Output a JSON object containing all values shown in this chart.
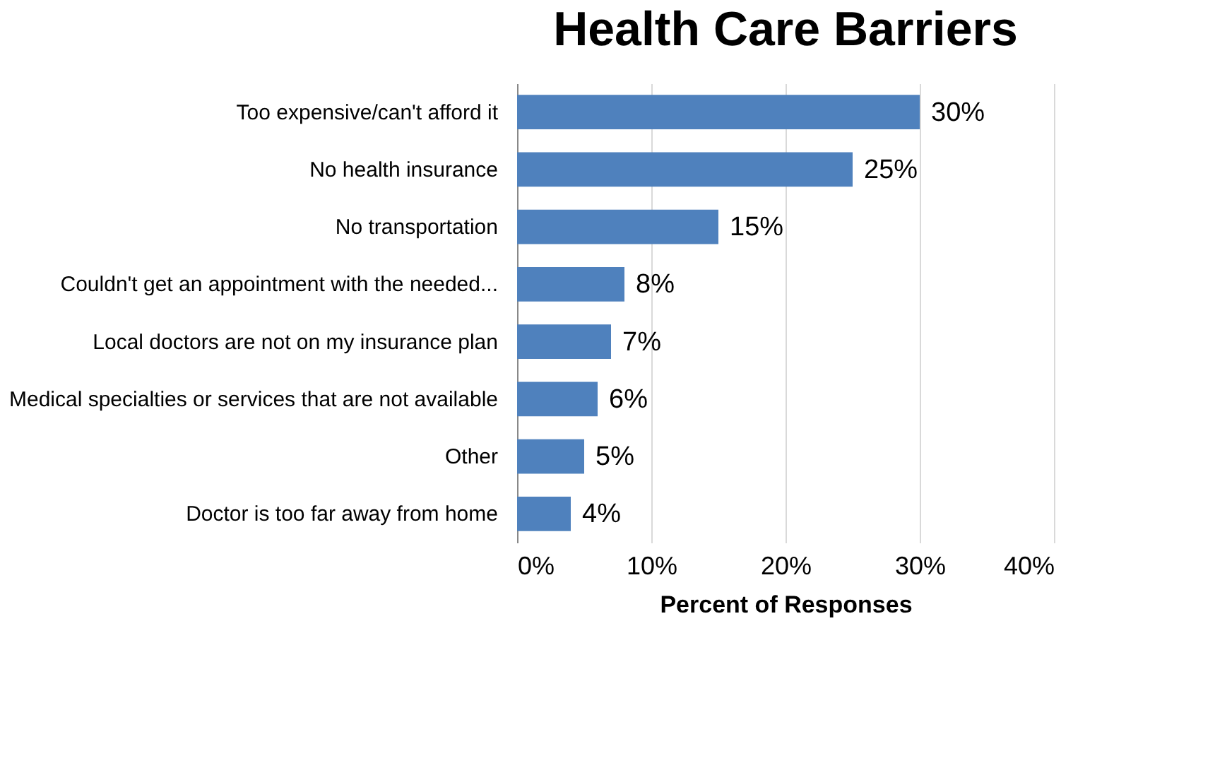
{
  "chart_data": {
    "type": "bar",
    "orientation": "horizontal",
    "title": "Health Care Barriers",
    "xlabel": "Percent of Responses",
    "categories": [
      "Too expensive/can't afford it",
      "No health insurance",
      "No transportation",
      "Couldn't get an appointment with the needed...",
      "Local doctors are not on my insurance plan",
      "Medical specialties or services that are not available",
      "Other",
      "Doctor is too far away from home"
    ],
    "values": [
      30,
      25,
      15,
      8,
      7,
      6,
      5,
      4
    ],
    "value_labels": [
      "30%",
      "25%",
      "15%",
      "8%",
      "7%",
      "6%",
      "5%",
      "4%"
    ],
    "color": "#4f81bd",
    "xlim": [
      0,
      40
    ],
    "xticks": [
      {
        "value": 0,
        "label": "0%"
      },
      {
        "value": 10,
        "label": "10%"
      },
      {
        "value": 20,
        "label": "20%"
      },
      {
        "value": 30,
        "label": "30%"
      },
      {
        "value": 40,
        "label": "40%"
      }
    ],
    "grid": "x"
  }
}
